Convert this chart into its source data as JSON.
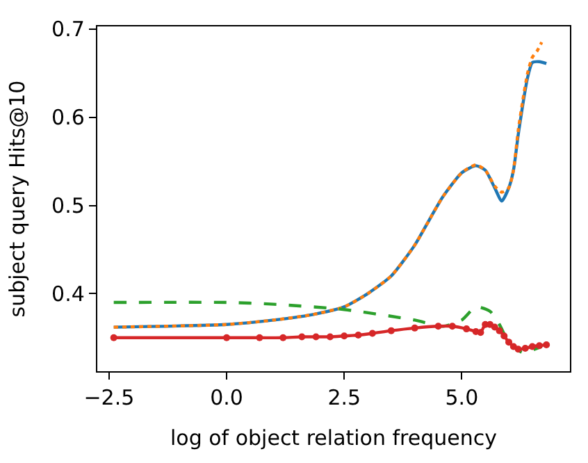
{
  "chart_data": {
    "type": "line",
    "xlabel": "log of object relation frequency",
    "ylabel": "subject query Hits@10",
    "xlim": [
      -2.75,
      7.3
    ],
    "ylim": [
      0.312,
      0.703
    ],
    "xticks": [
      {
        "value": -2.5,
        "label": "−2.5"
      },
      {
        "value": 0,
        "label": "0.0"
      },
      2.5,
      {
        "value": 5,
        "label": "5.0"
      }
    ],
    "yticks": [
      0.4,
      0.5,
      0.6,
      0.7
    ],
    "series": [
      {
        "color": "#1f77b4",
        "line_style": "solid",
        "marker": "none",
        "x": [
          -2.4,
          0,
          1,
          1.8,
          2.5,
          3,
          3.5,
          4,
          4.25,
          4.6,
          5,
          5.3,
          5.5,
          5.7,
          5.85,
          6.0,
          6.1,
          6.2,
          6.3,
          6.4,
          6.5,
          6.65,
          6.8
        ],
        "values": [
          0.362,
          0.365,
          0.37,
          0.376,
          0.385,
          0.4,
          0.42,
          0.455,
          0.478,
          0.51,
          0.537,
          0.545,
          0.54,
          0.52,
          0.505,
          0.52,
          0.54,
          0.58,
          0.615,
          0.645,
          0.662,
          0.663,
          0.661
        ]
      },
      {
        "color": "#ff7f0e",
        "line_style": "dotted",
        "marker": "none",
        "x": [
          -2.4,
          0,
          1,
          1.8,
          2.5,
          3,
          3.5,
          4,
          4.25,
          4.6,
          5,
          5.3,
          5.5,
          5.7,
          5.85,
          6.0,
          6.1,
          6.2,
          6.3,
          6.4,
          6.5,
          6.6,
          6.7
        ],
        "values": [
          0.362,
          0.365,
          0.37,
          0.376,
          0.385,
          0.4,
          0.42,
          0.455,
          0.478,
          0.51,
          0.537,
          0.546,
          0.54,
          0.522,
          0.515,
          0.52,
          0.54,
          0.585,
          0.62,
          0.65,
          0.668,
          0.675,
          0.685
        ]
      },
      {
        "color": "#2ca02c",
        "line_style": "dashed",
        "marker": "none",
        "x": [
          -2.4,
          0,
          1,
          2.5,
          4,
          4.6,
          5,
          5.3,
          5.6,
          5.8,
          6.0,
          6.3,
          6.5,
          6.7
        ],
        "values": [
          0.39,
          0.39,
          0.388,
          0.382,
          0.37,
          0.363,
          0.37,
          0.385,
          0.38,
          0.365,
          0.345,
          0.333,
          0.336,
          0.34
        ]
      },
      {
        "color": "#d62728",
        "line_style": "solid",
        "marker": "circle",
        "x": [
          -2.4,
          0,
          0.7,
          1.2,
          1.6,
          1.9,
          2.2,
          2.5,
          2.8,
          3.1,
          3.5,
          4,
          4.5,
          4.8,
          5.1,
          5.3,
          5.4,
          5.5,
          5.6,
          5.7,
          5.8,
          5.9,
          6.0,
          6.1,
          6.2,
          6.35,
          6.5,
          6.65,
          6.8
        ],
        "values": [
          0.35,
          0.35,
          0.35,
          0.35,
          0.351,
          0.351,
          0.351,
          0.352,
          0.353,
          0.355,
          0.358,
          0.361,
          0.363,
          0.363,
          0.36,
          0.357,
          0.356,
          0.365,
          0.365,
          0.362,
          0.358,
          0.352,
          0.345,
          0.34,
          0.337,
          0.338,
          0.34,
          0.341,
          0.342
        ]
      }
    ]
  }
}
